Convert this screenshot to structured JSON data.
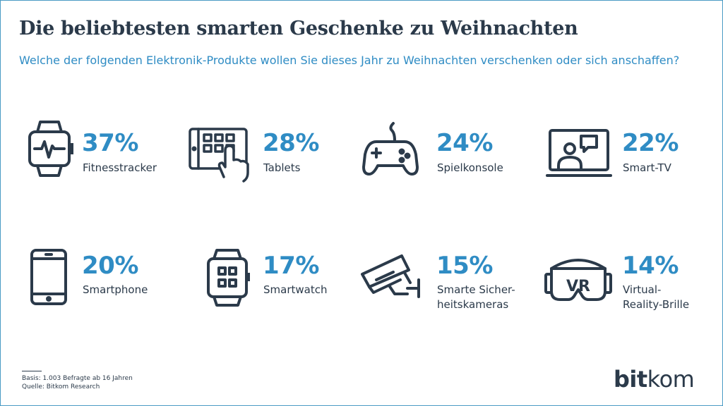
{
  "header": {
    "title": "Die beliebtesten smarten Geschenke zu Weihnachten",
    "subtitle": "Welche der folgenden Elektronik-Produkte wollen Sie dieses Jahr zu Weihnachten verschenken oder sich anschaffen?"
  },
  "chart_data": {
    "type": "table",
    "categories": [
      "Fitnesstracker",
      "Tablets",
      "Spielkonsole",
      "Smart-TV",
      "Smartphone",
      "Smartwatch",
      "Smarte Sicherheitskameras",
      "Virtual-Reality-Brille"
    ],
    "values": [
      37,
      28,
      24,
      22,
      20,
      17,
      15,
      14
    ],
    "unit": "%",
    "items": [
      {
        "value_label": "37%",
        "label_lines": [
          "Fitnesstracker"
        ],
        "icon": "fitness-tracker-icon"
      },
      {
        "value_label": "28%",
        "label_lines": [
          "Tablets"
        ],
        "icon": "tablet-icon"
      },
      {
        "value_label": "24%",
        "label_lines": [
          "Spielkonsole"
        ],
        "icon": "game-controller-icon"
      },
      {
        "value_label": "22%",
        "label_lines": [
          "Smart-TV"
        ],
        "icon": "smart-tv-icon"
      },
      {
        "value_label": "20%",
        "label_lines": [
          "Smartphone"
        ],
        "icon": "smartphone-icon"
      },
      {
        "value_label": "17%",
        "label_lines": [
          "Smartwatch"
        ],
        "icon": "smartwatch-icon"
      },
      {
        "value_label": "15%",
        "label_lines": [
          "Smarte Sicher-",
          "heitskameras"
        ],
        "icon": "security-camera-icon"
      },
      {
        "value_label": "14%",
        "label_lines": [
          "Virtual-",
          "Reality-Brille"
        ],
        "icon": "vr-glasses-icon"
      }
    ]
  },
  "footer": {
    "basis": "Basis: 1.003 Befragte ab 16 Jahren",
    "source": "Quelle: Bitkom Research"
  },
  "logo": {
    "part1": "bit",
    "part2": "kom"
  },
  "colors": {
    "accent": "#2f8cc4",
    "text": "#2b3a4a",
    "border": "#4a9bc4"
  }
}
